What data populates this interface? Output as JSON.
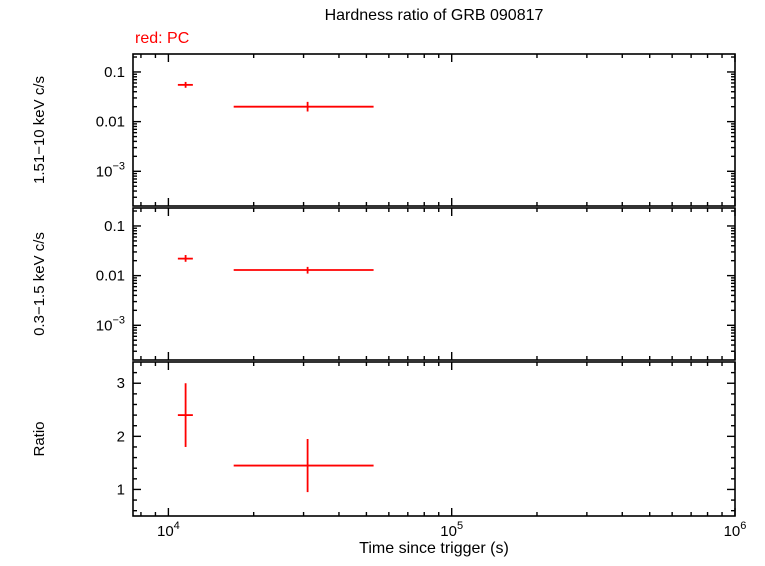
{
  "title": "Hardness ratio of GRB 090817",
  "legend": "red: PC",
  "xlabel": "Time since trigger (s)",
  "colors": {
    "accent": "#ff0000",
    "axis": "#000000",
    "background": "#ffffff"
  },
  "chart_data": {
    "type": "scatter",
    "title": "Hardness ratio of GRB 090817",
    "xlabel": "Time since trigger (s)",
    "x_scale": "log",
    "xlim": [
      7500,
      1000000
    ],
    "x_major_ticks": [
      10000,
      100000,
      1000000
    ],
    "x_tick_labels": [
      "10^4",
      "10^5",
      "10^6"
    ],
    "grid": false,
    "legend_entries": [
      {
        "label": "red: PC",
        "color": "#ff0000"
      }
    ],
    "panels": [
      {
        "ylabel": "1.51−10 keV c/s",
        "y_scale": "log",
        "ylim": [
          0.0002,
          0.23
        ],
        "y_major_ticks": [
          0.1,
          0.01,
          0.001
        ],
        "y_tick_labels": [
          "0.1",
          "0.01",
          "10^−3"
        ],
        "series": [
          {
            "name": "PC",
            "color": "#ff0000",
            "points": [
              {
                "x": 11500,
                "x_lo": 10800,
                "x_hi": 12200,
                "y": 0.055,
                "y_lo": 0.048,
                "y_hi": 0.063
              },
              {
                "x": 31000,
                "x_lo": 17000,
                "x_hi": 53000,
                "y": 0.02,
                "y_lo": 0.016,
                "y_hi": 0.025
              }
            ]
          }
        ]
      },
      {
        "ylabel": "0.3−1.5 keV c/s",
        "y_scale": "log",
        "ylim": [
          0.0002,
          0.23
        ],
        "y_major_ticks": [
          0.1,
          0.01,
          0.001
        ],
        "y_tick_labels": [
          "0.1",
          "0.01",
          "10^−3"
        ],
        "series": [
          {
            "name": "PC",
            "color": "#ff0000",
            "points": [
              {
                "x": 11500,
                "x_lo": 10800,
                "x_hi": 12200,
                "y": 0.022,
                "y_lo": 0.019,
                "y_hi": 0.026
              },
              {
                "x": 31000,
                "x_lo": 17000,
                "x_hi": 53000,
                "y": 0.013,
                "y_lo": 0.011,
                "y_hi": 0.015
              }
            ]
          }
        ]
      },
      {
        "ylabel": "Ratio",
        "y_scale": "linear",
        "ylim": [
          0.5,
          3.4
        ],
        "y_minor_step": 0.2,
        "y_major_ticks": [
          1,
          2,
          3
        ],
        "y_tick_labels": [
          "1",
          "2",
          "3"
        ],
        "series": [
          {
            "name": "PC",
            "color": "#ff0000",
            "points": [
              {
                "x": 11500,
                "x_lo": 10800,
                "x_hi": 12200,
                "y": 2.4,
                "y_lo": 1.8,
                "y_hi": 3.0
              },
              {
                "x": 31000,
                "x_lo": 17000,
                "x_hi": 53000,
                "y": 1.45,
                "y_lo": 0.95,
                "y_hi": 1.95
              }
            ]
          }
        ]
      }
    ]
  }
}
